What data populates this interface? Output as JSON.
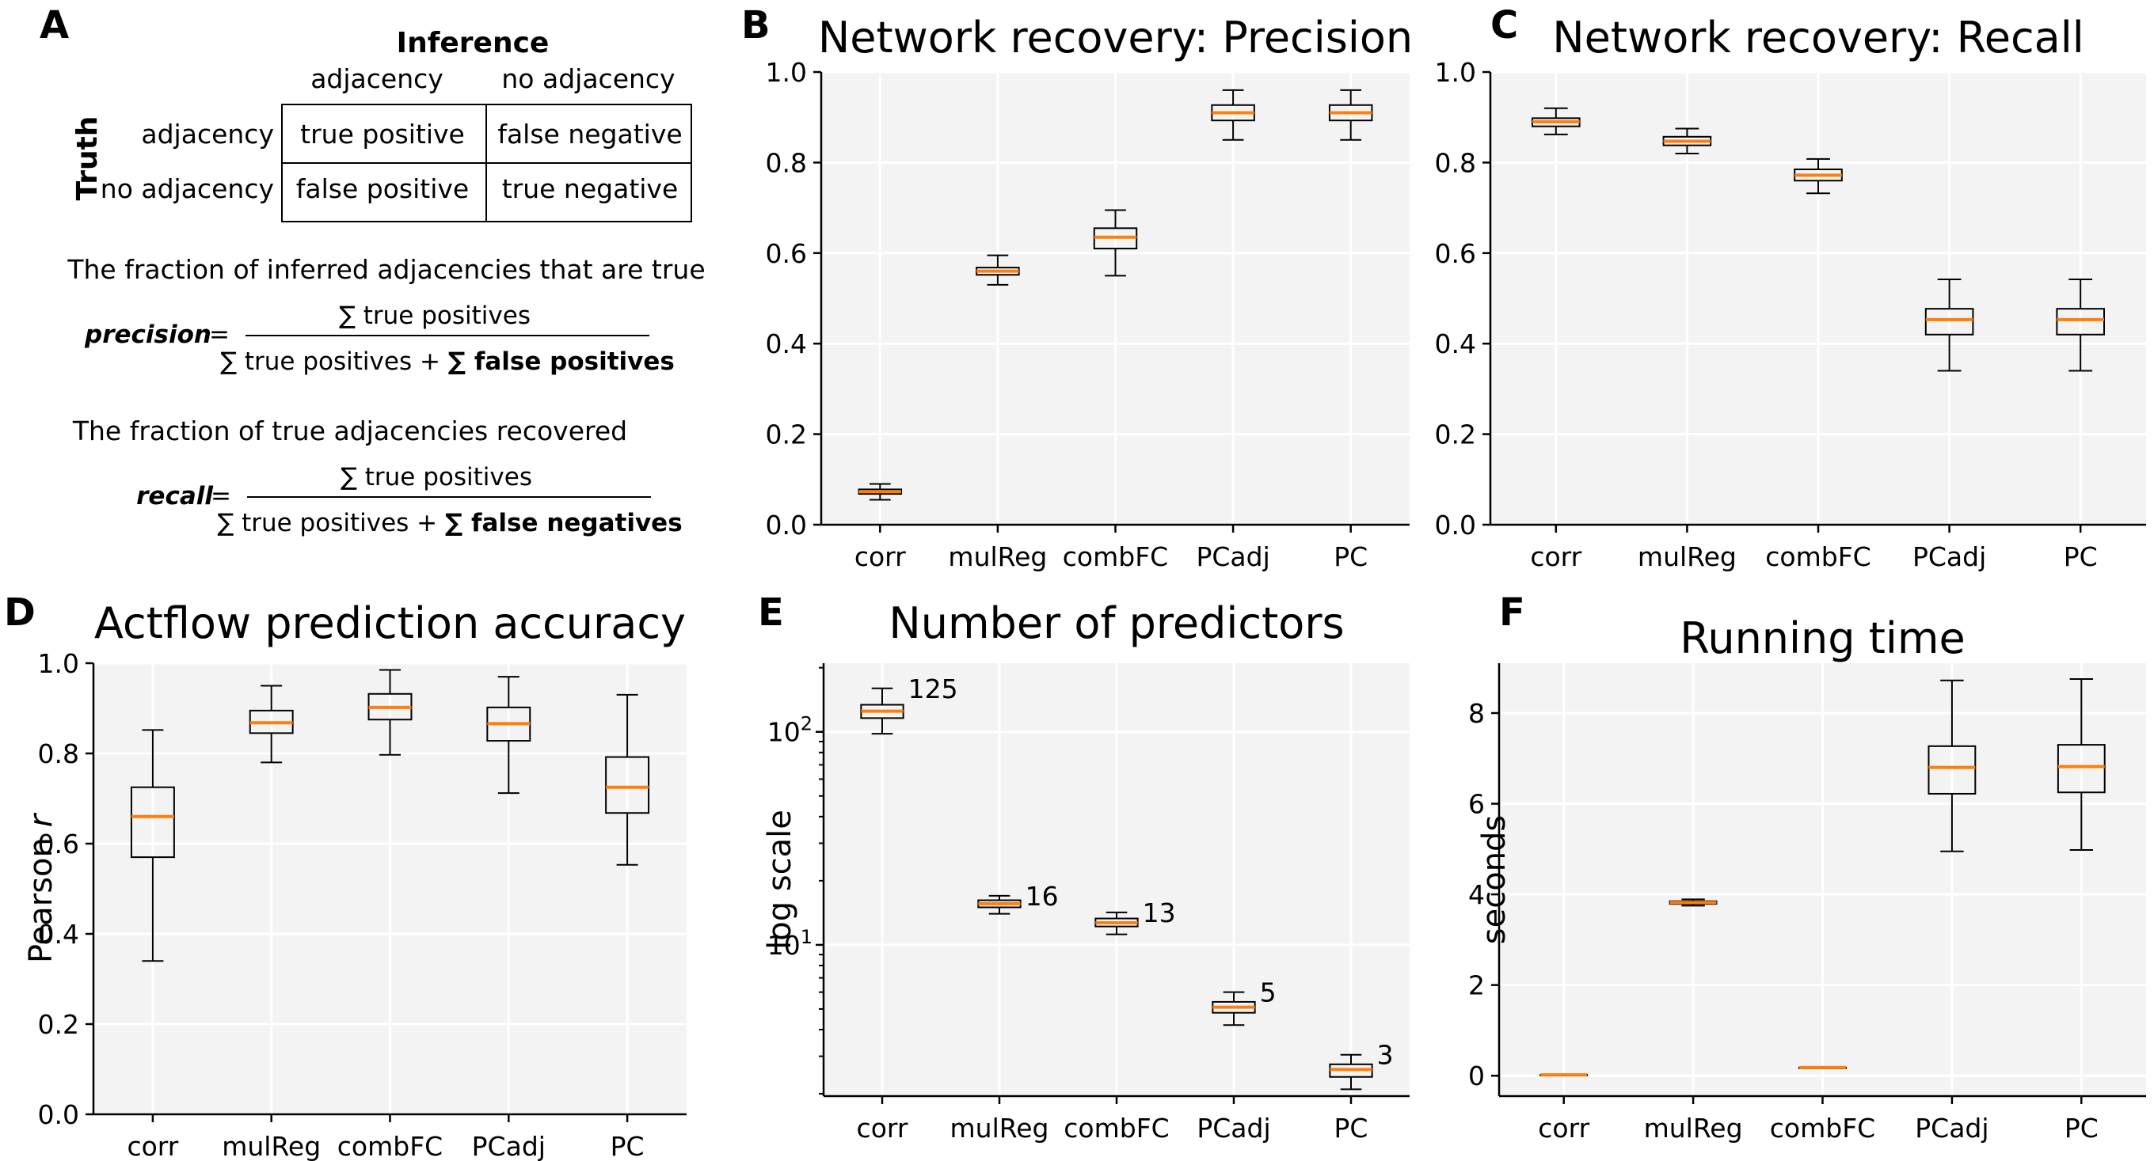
{
  "panel_a": {
    "letter": "A",
    "header_inference": "Inference",
    "header_truth": "Truth",
    "col_labels": [
      "adjacency",
      "no adjacency"
    ],
    "row_labels": [
      "adjacency",
      "no adjacency"
    ],
    "cells": [
      [
        "true positive",
        "false negative"
      ],
      [
        "false positive",
        "true negative"
      ]
    ],
    "precision_caption": "The fraction of inferred adjacencies that are true",
    "precision_label": "precision",
    "precision_numerator": "∑ true positives",
    "precision_denominator_plain": "∑ true positives + ",
    "precision_denominator_bold": "∑ false positives",
    "recall_caption": "The fraction of true adjacencies recovered",
    "recall_label": "recall",
    "recall_numerator": "∑ true positives",
    "recall_denominator_plain": "∑ true positives + ",
    "recall_denominator_bold": "∑ false negatives",
    "equals": "="
  },
  "colors": {
    "panel_bg": "#f3f3f3",
    "median": "#ff7f0e",
    "box_edge": "#000000",
    "grid": "#ffffff"
  },
  "chart_data": [
    {
      "id": "B",
      "letter": "B",
      "type": "box",
      "title": "Network recovery: Precision",
      "ylabel": "",
      "yscale": "linear",
      "ylim": [
        0,
        1.0
      ],
      "yticks": [
        0.0,
        0.2,
        0.4,
        0.6,
        0.8,
        1.0
      ],
      "ytick_labels": [
        "0.0",
        "0.2",
        "0.4",
        "0.6",
        "0.8",
        "1.0"
      ],
      "grid": true,
      "categories": [
        "corr",
        "mulReg",
        "combFC",
        "PCadj",
        "PC"
      ],
      "boxes": [
        {
          "whislo": 0.055,
          "q1": 0.068,
          "med": 0.073,
          "q3": 0.078,
          "whishi": 0.09
        },
        {
          "whislo": 0.53,
          "q1": 0.552,
          "med": 0.56,
          "q3": 0.568,
          "whishi": 0.595
        },
        {
          "whislo": 0.55,
          "q1": 0.61,
          "med": 0.635,
          "q3": 0.655,
          "whishi": 0.695
        },
        {
          "whislo": 0.85,
          "q1": 0.893,
          "med": 0.91,
          "q3": 0.927,
          "whishi": 0.96
        },
        {
          "whislo": 0.85,
          "q1": 0.893,
          "med": 0.91,
          "q3": 0.927,
          "whishi": 0.96
        }
      ],
      "annotations": []
    },
    {
      "id": "C",
      "letter": "C",
      "type": "box",
      "title": "Network recovery: Recall",
      "ylabel": "",
      "yscale": "linear",
      "ylim": [
        0,
        1.0
      ],
      "yticks": [
        0.0,
        0.2,
        0.4,
        0.6,
        0.8,
        1.0
      ],
      "ytick_labels": [
        "0.0",
        "0.2",
        "0.4",
        "0.6",
        "0.8",
        "1.0"
      ],
      "grid": true,
      "categories": [
        "corr",
        "mulReg",
        "combFC",
        "PCadj",
        "PC"
      ],
      "boxes": [
        {
          "whislo": 0.862,
          "q1": 0.88,
          "med": 0.89,
          "q3": 0.898,
          "whishi": 0.92
        },
        {
          "whislo": 0.82,
          "q1": 0.838,
          "med": 0.847,
          "q3": 0.857,
          "whishi": 0.875
        },
        {
          "whislo": 0.732,
          "q1": 0.76,
          "med": 0.772,
          "q3": 0.785,
          "whishi": 0.808
        },
        {
          "whislo": 0.34,
          "q1": 0.42,
          "med": 0.453,
          "q3": 0.477,
          "whishi": 0.542
        },
        {
          "whislo": 0.34,
          "q1": 0.42,
          "med": 0.453,
          "q3": 0.477,
          "whishi": 0.542
        }
      ],
      "annotations": []
    },
    {
      "id": "D",
      "letter": "D",
      "type": "box",
      "title": "Actflow prediction accuracy",
      "ylabel": "Pearson ",
      "ylabel_italic": "r",
      "yscale": "linear",
      "ylim": [
        0,
        1.0
      ],
      "yticks": [
        0.0,
        0.2,
        0.4,
        0.6,
        0.8,
        1.0
      ],
      "ytick_labels": [
        "0.0",
        "0.2",
        "0.4",
        "0.6",
        "0.8",
        "1.0"
      ],
      "grid": true,
      "categories": [
        "corr",
        "mulReg",
        "combFC",
        "PCadj",
        "PC"
      ],
      "boxes": [
        {
          "whislo": 0.34,
          "q1": 0.57,
          "med": 0.66,
          "q3": 0.725,
          "whishi": 0.852
        },
        {
          "whislo": 0.78,
          "q1": 0.845,
          "med": 0.868,
          "q3": 0.895,
          "whishi": 0.95
        },
        {
          "whislo": 0.797,
          "q1": 0.875,
          "med": 0.902,
          "q3": 0.932,
          "whishi": 0.985
        },
        {
          "whislo": 0.712,
          "q1": 0.828,
          "med": 0.866,
          "q3": 0.902,
          "whishi": 0.97
        },
        {
          "whislo": 0.553,
          "q1": 0.668,
          "med": 0.725,
          "q3": 0.792,
          "whishi": 0.93
        }
      ],
      "annotations": []
    },
    {
      "id": "E",
      "letter": "E",
      "type": "box",
      "title": "Number of predictors",
      "ylabel": "log scale",
      "yscale": "log",
      "ylim": [
        1.95,
        210
      ],
      "yticks": [
        10,
        100
      ],
      "ytick_labels": [
        {
          "base": "10",
          "exp": "1"
        },
        {
          "base": "10",
          "exp": "2"
        }
      ],
      "grid": true,
      "categories": [
        "corr",
        "mulReg",
        "combFC",
        "PCadj",
        "PC"
      ],
      "boxes": [
        {
          "whislo": 98,
          "q1": 116,
          "med": 125,
          "q3": 134,
          "whishi": 160
        },
        {
          "whislo": 14.0,
          "q1": 15.0,
          "med": 15.6,
          "q3": 16.2,
          "whishi": 17.0
        },
        {
          "whislo": 11.2,
          "q1": 12.2,
          "med": 12.7,
          "q3": 13.3,
          "whishi": 14.2
        },
        {
          "whislo": 4.2,
          "q1": 4.8,
          "med": 5.1,
          "q3": 5.4,
          "whishi": 6.0
        },
        {
          "whislo": 2.1,
          "q1": 2.4,
          "med": 2.6,
          "q3": 2.75,
          "whishi": 3.05
        }
      ],
      "annotations": [
        "125",
        "16",
        "13",
        "5",
        "3"
      ]
    },
    {
      "id": "F",
      "letter": "F",
      "type": "box",
      "title": "Running time",
      "ylabel": "seconds",
      "yscale": "linear",
      "ylim": [
        -0.45,
        9.1
      ],
      "yticks": [
        0,
        2,
        4,
        6,
        8
      ],
      "ytick_labels": [
        "0",
        "2",
        "4",
        "6",
        "8"
      ],
      "grid": true,
      "categories": [
        "corr",
        "mulReg",
        "combFC",
        "PCadj",
        "PC"
      ],
      "boxes": [
        {
          "whislo": 0.02,
          "q1": 0.02,
          "med": 0.02,
          "q3": 0.02,
          "whishi": 0.02
        },
        {
          "whislo": 3.75,
          "q1": 3.79,
          "med": 3.82,
          "q3": 3.85,
          "whishi": 3.89
        },
        {
          "whislo": 0.18,
          "q1": 0.18,
          "med": 0.18,
          "q3": 0.18,
          "whishi": 0.18
        },
        {
          "whislo": 4.95,
          "q1": 6.22,
          "med": 6.8,
          "q3": 7.27,
          "whishi": 8.72
        },
        {
          "whislo": 4.98,
          "q1": 6.25,
          "med": 6.82,
          "q3": 7.3,
          "whishi": 8.75
        }
      ],
      "annotations": []
    }
  ]
}
